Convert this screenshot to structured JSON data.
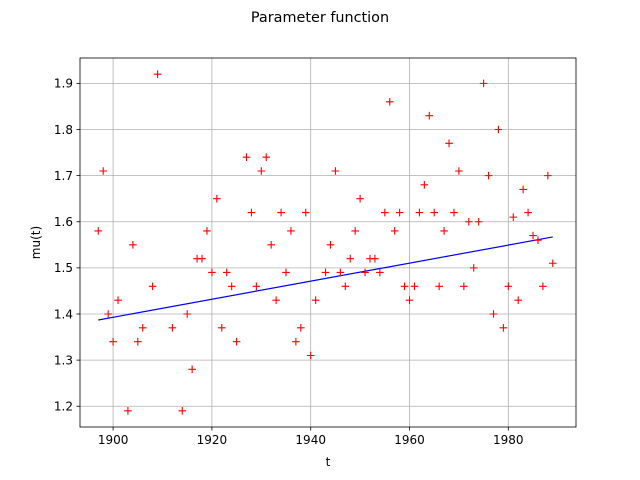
{
  "chart_data": {
    "type": "scatter",
    "title": "Parameter function",
    "xlabel": "t",
    "ylabel": "mu(t)",
    "xlim": [
      1893.3,
      1993.7
    ],
    "ylim": [
      1.155,
      1.955
    ],
    "xticks": [
      1900,
      1920,
      1940,
      1960,
      1980
    ],
    "yticks": [
      1.2,
      1.3,
      1.4,
      1.5,
      1.6,
      1.7,
      1.8,
      1.9
    ],
    "ytick_labels": [
      "1.2",
      "1.3",
      "1.4",
      "1.5",
      "1.6",
      "1.7",
      "1.8",
      "1.9"
    ],
    "grid": true,
    "colors": {
      "points": "#ff0000",
      "fit_line": "#0000ff",
      "grid": "#b0b0b0"
    },
    "series": [
      {
        "kind": "points",
        "marker": "+",
        "x": [
          1897,
          1898,
          1899,
          1900,
          1901,
          1903,
          1904,
          1905,
          1906,
          1908,
          1909,
          1912,
          1914,
          1915,
          1916,
          1917,
          1918,
          1919,
          1920,
          1921,
          1922,
          1923,
          1924,
          1925,
          1927,
          1928,
          1929,
          1930,
          1931,
          1932,
          1933,
          1934,
          1935,
          1936,
          1937,
          1938,
          1939,
          1940,
          1941,
          1943,
          1944,
          1945,
          1946,
          1947,
          1948,
          1949,
          1950,
          1951,
          1952,
          1953,
          1954,
          1955,
          1956,
          1957,
          1958,
          1959,
          1960,
          1961,
          1962,
          1963,
          1964,
          1965,
          1966,
          1967,
          1968,
          1969,
          1970,
          1971,
          1972,
          1973,
          1974,
          1975,
          1976,
          1977,
          1978,
          1979,
          1980,
          1981,
          1982,
          1983,
          1984,
          1985,
          1986,
          1987,
          1988,
          1989
        ],
        "y": [
          1.58,
          1.71,
          1.4,
          1.34,
          1.43,
          1.19,
          1.55,
          1.34,
          1.37,
          1.46,
          1.92,
          1.37,
          1.19,
          1.4,
          1.28,
          1.52,
          1.52,
          1.58,
          1.49,
          1.65,
          1.37,
          1.49,
          1.46,
          1.34,
          1.74,
          1.62,
          1.46,
          1.71,
          1.74,
          1.55,
          1.43,
          1.62,
          1.49,
          1.58,
          1.34,
          1.37,
          1.62,
          1.31,
          1.43,
          1.49,
          1.55,
          1.71,
          1.49,
          1.46,
          1.52,
          1.58,
          1.65,
          1.49,
          1.52,
          1.52,
          1.49,
          1.62,
          1.86,
          1.58,
          1.62,
          1.46,
          1.43,
          1.46,
          1.62,
          1.68,
          1.83,
          1.62,
          1.46,
          1.58,
          1.77,
          1.62,
          1.71,
          1.46,
          1.6,
          1.5,
          1.6,
          1.9,
          1.7,
          1.4,
          1.8,
          1.37,
          1.46,
          1.61,
          1.43,
          1.67,
          1.62,
          1.57,
          1.56,
          1.46,
          1.7,
          1.51
        ]
      },
      {
        "kind": "line",
        "x": [
          1897,
          1989
        ],
        "y": [
          1.387,
          1.567
        ]
      }
    ]
  }
}
